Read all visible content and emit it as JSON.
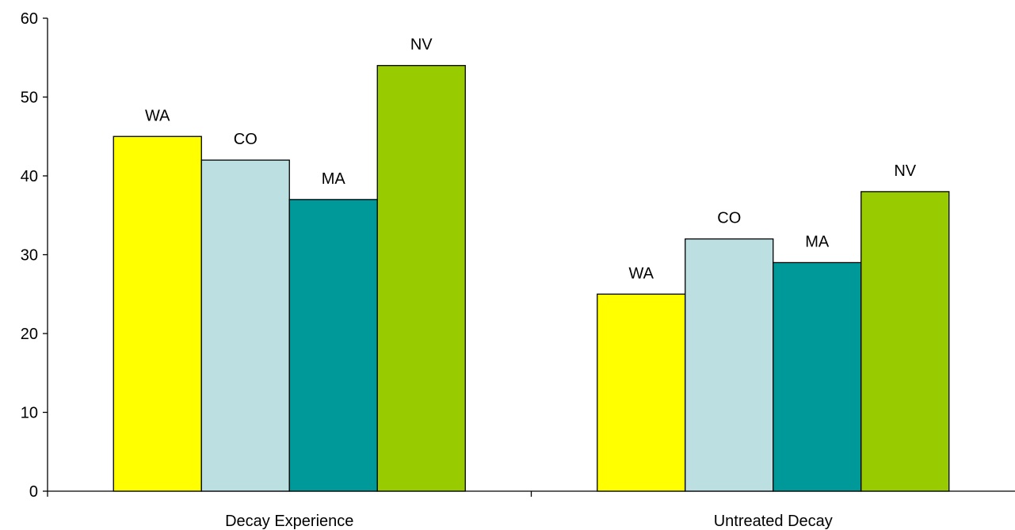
{
  "chart_data": {
    "type": "bar",
    "title": "",
    "xlabel": "",
    "ylabel": "",
    "ylim": [
      0,
      60
    ],
    "yticks": [
      0,
      10,
      20,
      30,
      40,
      50,
      60
    ],
    "grid": false,
    "legend": "none",
    "categories": [
      "Decay Experience",
      "Untreated Decay"
    ],
    "series": [
      {
        "name": "WA",
        "color": "#FFFF00",
        "values": [
          45,
          25
        ]
      },
      {
        "name": "CO",
        "color": "#BCE0E2",
        "values": [
          42,
          32
        ]
      },
      {
        "name": "MA",
        "color": "#009999",
        "values": [
          37,
          29
        ]
      },
      {
        "name": "NV",
        "color": "#99CC00",
        "values": [
          54,
          38
        ]
      }
    ]
  }
}
